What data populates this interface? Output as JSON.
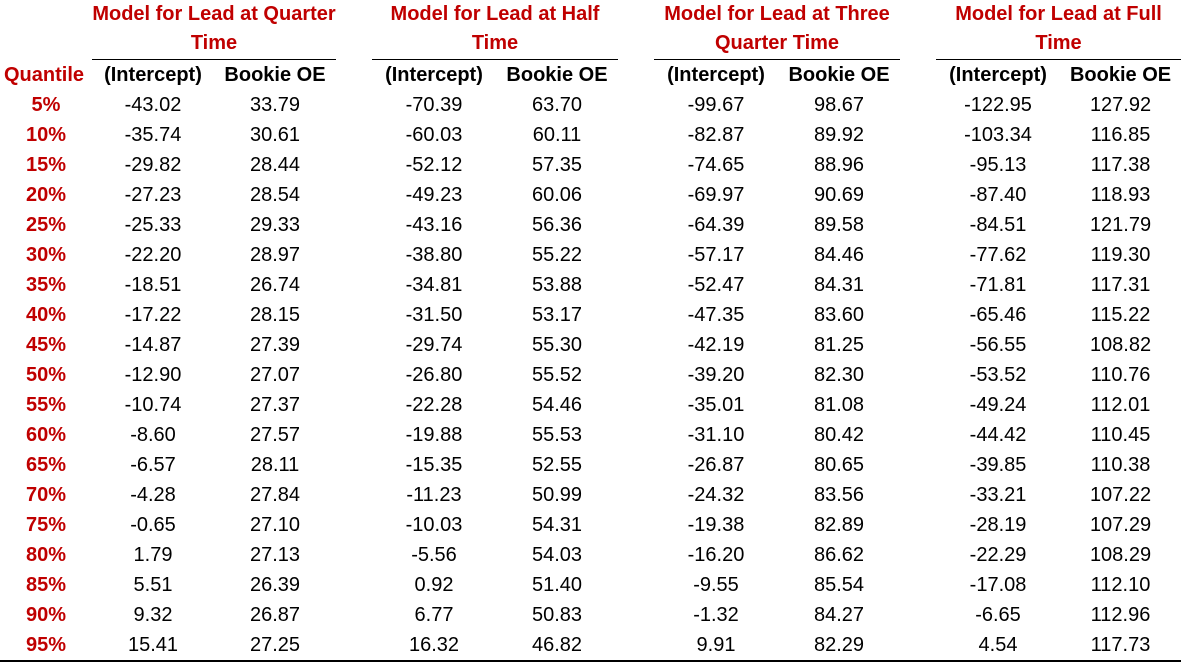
{
  "groups": [
    {
      "title": "Model for Lead at Quarter Time"
    },
    {
      "title": "Model for Lead at Half Time"
    },
    {
      "title": "Model for Lead at Three Quarter Time"
    },
    {
      "title": "Model for Lead at Full Time"
    }
  ],
  "header": {
    "quantile": "Quantile",
    "intercept": "(Intercept)",
    "bookie": "Bookie OE"
  },
  "rows": [
    {
      "q": "5%",
      "v": [
        "-43.02",
        "33.79",
        "-70.39",
        "63.70",
        "-99.67",
        "98.67",
        "-122.95",
        "127.92"
      ]
    },
    {
      "q": "10%",
      "v": [
        "-35.74",
        "30.61",
        "-60.03",
        "60.11",
        "-82.87",
        "89.92",
        "-103.34",
        "116.85"
      ]
    },
    {
      "q": "15%",
      "v": [
        "-29.82",
        "28.44",
        "-52.12",
        "57.35",
        "-74.65",
        "88.96",
        "-95.13",
        "117.38"
      ]
    },
    {
      "q": "20%",
      "v": [
        "-27.23",
        "28.54",
        "-49.23",
        "60.06",
        "-69.97",
        "90.69",
        "-87.40",
        "118.93"
      ]
    },
    {
      "q": "25%",
      "v": [
        "-25.33",
        "29.33",
        "-43.16",
        "56.36",
        "-64.39",
        "89.58",
        "-84.51",
        "121.79"
      ]
    },
    {
      "q": "30%",
      "v": [
        "-22.20",
        "28.97",
        "-38.80",
        "55.22",
        "-57.17",
        "84.46",
        "-77.62",
        "119.30"
      ]
    },
    {
      "q": "35%",
      "v": [
        "-18.51",
        "26.74",
        "-34.81",
        "53.88",
        "-52.47",
        "84.31",
        "-71.81",
        "117.31"
      ]
    },
    {
      "q": "40%",
      "v": [
        "-17.22",
        "28.15",
        "-31.50",
        "53.17",
        "-47.35",
        "83.60",
        "-65.46",
        "115.22"
      ]
    },
    {
      "q": "45%",
      "v": [
        "-14.87",
        "27.39",
        "-29.74",
        "55.30",
        "-42.19",
        "81.25",
        "-56.55",
        "108.82"
      ]
    },
    {
      "q": "50%",
      "v": [
        "-12.90",
        "27.07",
        "-26.80",
        "55.52",
        "-39.20",
        "82.30",
        "-53.52",
        "110.76"
      ]
    },
    {
      "q": "55%",
      "v": [
        "-10.74",
        "27.37",
        "-22.28",
        "54.46",
        "-35.01",
        "81.08",
        "-49.24",
        "112.01"
      ]
    },
    {
      "q": "60%",
      "v": [
        "-8.60",
        "27.57",
        "-19.88",
        "55.53",
        "-31.10",
        "80.42",
        "-44.42",
        "110.45"
      ]
    },
    {
      "q": "65%",
      "v": [
        "-6.57",
        "28.11",
        "-15.35",
        "52.55",
        "-26.87",
        "80.65",
        "-39.85",
        "110.38"
      ]
    },
    {
      "q": "70%",
      "v": [
        "-4.28",
        "27.84",
        "-11.23",
        "50.99",
        "-24.32",
        "83.56",
        "-33.21",
        "107.22"
      ]
    },
    {
      "q": "75%",
      "v": [
        "-0.65",
        "27.10",
        "-10.03",
        "54.31",
        "-19.38",
        "82.89",
        "-28.19",
        "107.29"
      ]
    },
    {
      "q": "80%",
      "v": [
        "1.79",
        "27.13",
        "-5.56",
        "54.03",
        "-16.20",
        "86.62",
        "-22.29",
        "108.29"
      ]
    },
    {
      "q": "85%",
      "v": [
        "5.51",
        "26.39",
        "0.92",
        "51.40",
        "-9.55",
        "85.54",
        "-17.08",
        "112.10"
      ]
    },
    {
      "q": "90%",
      "v": [
        "9.32",
        "26.87",
        "6.77",
        "50.83",
        "-1.32",
        "84.27",
        "-6.65",
        "112.96"
      ]
    },
    {
      "q": "95%",
      "v": [
        "15.41",
        "27.25",
        "16.32",
        "46.82",
        "9.91",
        "82.29",
        "4.54",
        "117.73"
      ]
    }
  ]
}
